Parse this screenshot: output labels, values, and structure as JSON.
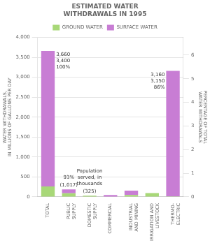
{
  "chart_data": {
    "type": "bar",
    "title": "ESTIMATED WATER\nWITHDRAWALS IN 1995",
    "categories": [
      "TOTAL",
      "PUBLIC\nSUPPLY",
      "DOMESTIC\nSUPPLY",
      "COMMERCIAL",
      "INDUSTRIAL\nAND MINING",
      "IRRIGATION AND\nLIVESTOCK",
      "THERMO-\nELECTRIC"
    ],
    "series": [
      {
        "name": "GROUND WATER",
        "color": "#a8d878",
        "values": [
          260,
          90,
          27,
          5,
          45,
          93,
          10
        ]
      },
      {
        "name": "SURFACE WATER",
        "color": "#c87dd4",
        "values": [
          3400,
          95,
          3,
          40,
          110,
          0,
          3150
        ]
      }
    ],
    "stacked": true,
    "ylabel": "WATER WITHDRAWALS,\nIN MILLIONS OF GALLONS PER DAY",
    "y2label": "PERCENTAGE OF TOTAL\nWATER WITHDRAWALS",
    "ylim": [
      0,
      4000
    ],
    "yticks": [
      0,
      500,
      1000,
      1500,
      2000,
      2500,
      3000,
      3500,
      4000
    ],
    "y2lim": [
      0,
      6.75
    ],
    "y2ticks": [
      0,
      1,
      2,
      3,
      4,
      5,
      6
    ],
    "grid": true,
    "legend": "upper center",
    "annotations": [
      {
        "category": "TOTAL",
        "text": "3,660"
      },
      {
        "category": "TOTAL",
        "text": "3,400"
      },
      {
        "category": "TOTAL",
        "text": "100%"
      },
      {
        "category": "PUBLIC\nSUPPLY",
        "text": "(1,017)"
      },
      {
        "category": "PUBLIC\nSUPPLY",
        "text": "93%"
      },
      {
        "category": "DOMESTIC\nSUPPLY",
        "text": "(325)"
      },
      {
        "category": "DOMESTIC\nSUPPLY",
        "text": "Population\nserved, in\nthousands"
      },
      {
        "category": "THERMO-\nELECTRIC",
        "text": "3,160"
      },
      {
        "category": "THERMO-\nELECTRIC",
        "text": "3,150"
      },
      {
        "category": "THERMO-\nELECTRIC",
        "text": "86%"
      }
    ]
  }
}
